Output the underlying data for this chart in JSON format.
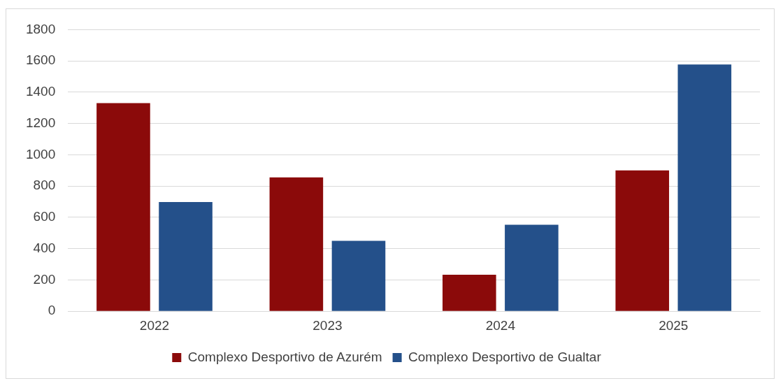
{
  "chart_data": {
    "type": "bar",
    "categories": [
      "2022",
      "2023",
      "2024",
      "2025"
    ],
    "series": [
      {
        "name": "Complexo Desportivo de Azurém",
        "color": "#8b0a0a",
        "values": [
          1330,
          855,
          233,
          900
        ]
      },
      {
        "name": "Complexo Desportivo de Gualtar",
        "color": "#24508a",
        "values": [
          698,
          450,
          553,
          1577
        ]
      }
    ],
    "ylim": [
      0,
      1800
    ],
    "yticks": [
      0,
      200,
      400,
      600,
      800,
      1000,
      1200,
      1400,
      1600,
      1800
    ],
    "grid": "y",
    "legend": "bottom"
  }
}
